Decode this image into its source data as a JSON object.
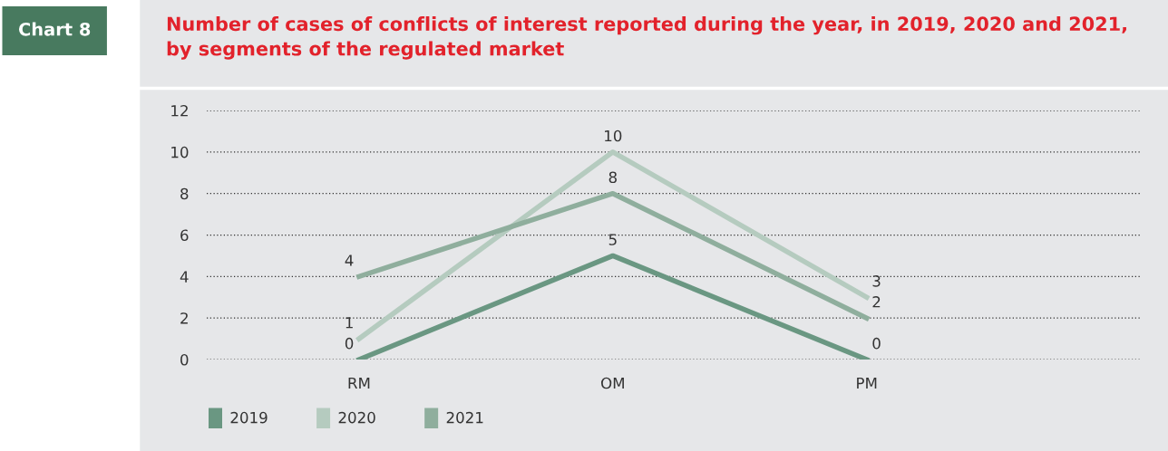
{
  "chart_data": {
    "type": "line",
    "title": "Number of cases of conflicts of interest reported during the year, in 2019, 2020 and 2021,\nby segments of the regulated market",
    "annotations": [
      "Chart 8"
    ],
    "categories": [
      "RM",
      "OM",
      "PM"
    ],
    "series": [
      {
        "name": "2019",
        "color": "#6a9782",
        "values": [
          0,
          5,
          0
        ]
      },
      {
        "name": "2020",
        "color": "#b5cbbf",
        "values": [
          1,
          10,
          3
        ]
      },
      {
        "name": "2021",
        "color": "#8fae9d",
        "values": [
          4,
          8,
          2
        ]
      }
    ],
    "ylim": [
      0,
      12
    ],
    "yticks": [
      0,
      2,
      4,
      6,
      8,
      10,
      12
    ],
    "grid": "y",
    "legend": "bottom left",
    "data_labels": true,
    "marker": "none",
    "line_style": "solid"
  }
}
